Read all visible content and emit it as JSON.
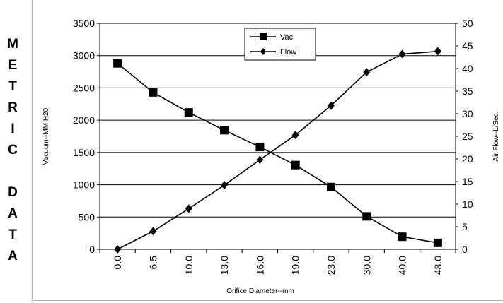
{
  "side_label": [
    "M",
    "E",
    "T",
    "R",
    "I",
    "C",
    "",
    "D",
    "A",
    "T",
    "A"
  ],
  "chart_data": {
    "type": "line",
    "categories": [
      "0.0",
      "6.5",
      "10.0",
      "13.0",
      "16.0",
      "19.0",
      "23.0",
      "30.0",
      "40.0",
      "48.0"
    ],
    "series": [
      {
        "name": "Vac",
        "axis": "left",
        "marker": "square",
        "values": [
          2880,
          2430,
          2120,
          1845,
          1585,
          1305,
          965,
          510,
          195,
          100
        ]
      },
      {
        "name": "Flow",
        "axis": "right",
        "marker": "diamond",
        "values": [
          0,
          4.0,
          9.0,
          14.2,
          19.8,
          25.3,
          31.8,
          39.2,
          43.2,
          43.8
        ]
      }
    ],
    "xlabel": "Orifice Diameter--mm",
    "ylabel": "Vacuum--MM H20",
    "y2label": "Air Flow--L/Sec.",
    "ylim": [
      0,
      3500
    ],
    "yticks": [
      "0",
      "500",
      "1000",
      "1500",
      "2000",
      "2500",
      "3000",
      "3500"
    ],
    "y2lim": [
      0,
      50
    ],
    "y2ticks": [
      "0",
      "5",
      "10",
      "15",
      "20",
      "25",
      "30",
      "35",
      "40",
      "45",
      "50"
    ],
    "grid": true,
    "legend": "top-center"
  }
}
